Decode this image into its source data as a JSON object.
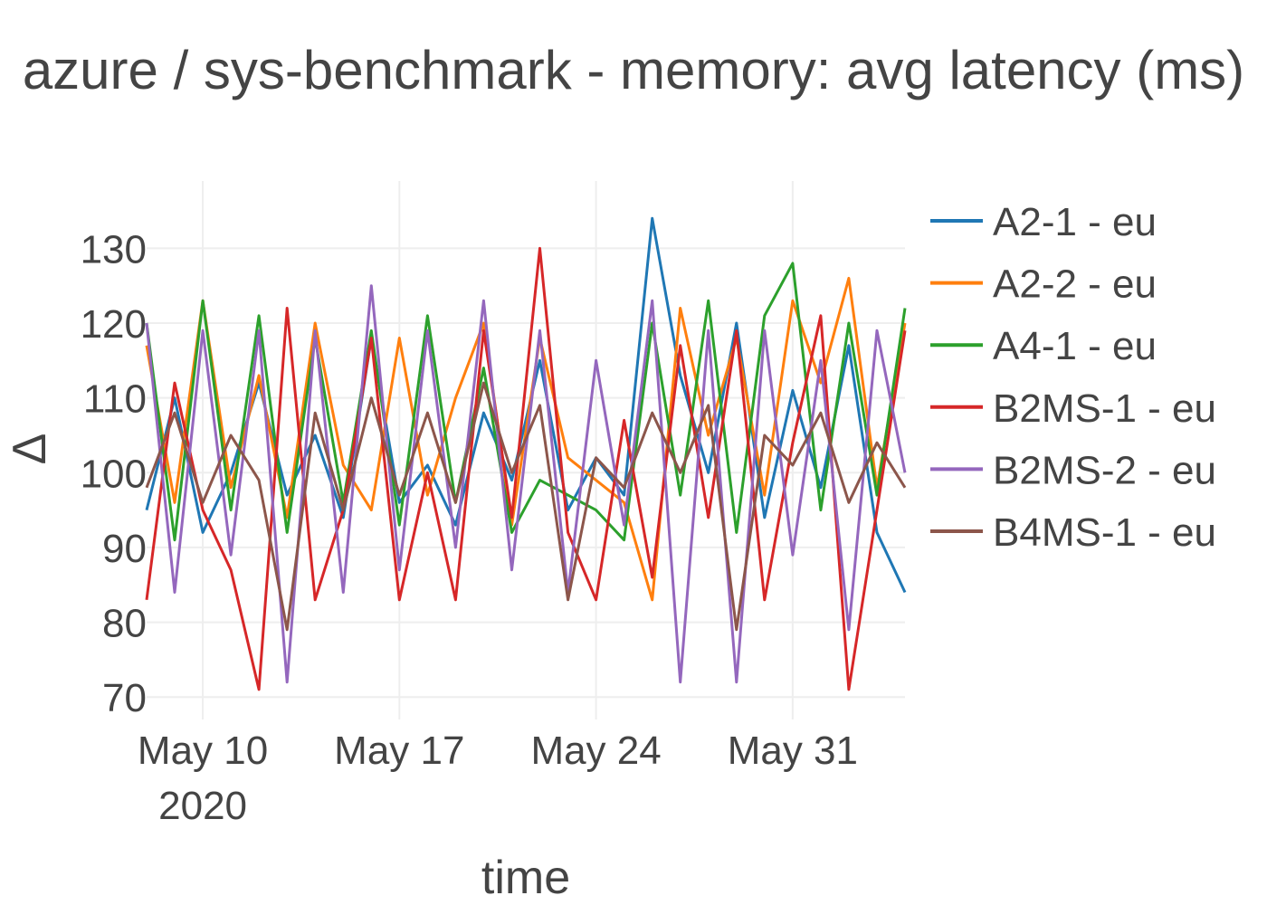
{
  "chart_data": {
    "type": "line",
    "title": "azure / sys-benchmark - memory: avg latency (ms)",
    "xlabel": "time",
    "ylabel": "Δ",
    "x_range": [
      "2020-05-08",
      "2020-06-04"
    ],
    "ylim": [
      67,
      139
    ],
    "y_ticks": [
      70,
      80,
      90,
      100,
      110,
      120,
      130
    ],
    "y_tick_labels": [
      "70",
      "80",
      "90",
      "100",
      "110",
      "120",
      "130"
    ],
    "x_ticks": [
      {
        "date": "2020-05-10",
        "label": "May 10",
        "sublabel": "2020"
      },
      {
        "date": "2020-05-17",
        "label": "May 17",
        "sublabel": ""
      },
      {
        "date": "2020-05-24",
        "label": "May 24",
        "sublabel": ""
      },
      {
        "date": "2020-05-31",
        "label": "May 31",
        "sublabel": ""
      }
    ],
    "grid": true,
    "legend_position": "top-right",
    "series": [
      {
        "name": "A2-1 - eu",
        "color": "#1f77b4",
        "x": [
          "2020-05-08",
          "2020-05-09",
          "2020-05-10",
          "2020-05-11",
          "2020-05-12",
          "2020-05-13",
          "2020-05-14",
          "2020-05-15",
          "2020-05-16",
          "2020-05-17",
          "2020-05-18",
          "2020-05-19",
          "2020-05-20",
          "2020-05-21",
          "2020-05-22",
          "2020-05-23",
          "2020-05-24",
          "2020-05-25",
          "2020-05-26",
          "2020-05-27",
          "2020-05-28",
          "2020-05-29",
          "2020-05-30",
          "2020-05-31",
          "2020-06-01",
          "2020-06-02",
          "2020-06-03",
          "2020-06-04"
        ],
        "values": [
          95,
          110,
          92,
          100,
          112,
          97,
          105,
          94,
          118,
          96,
          101,
          93,
          108,
          99,
          115,
          95,
          102,
          97,
          134,
          113,
          100,
          120,
          94,
          111,
          98,
          117,
          92,
          84
        ]
      },
      {
        "name": "A2-2 - eu",
        "color": "#ff7f0e",
        "x": [
          "2020-05-08",
          "2020-05-09",
          "2020-05-10",
          "2020-05-11",
          "2020-05-12",
          "2020-05-13",
          "2020-05-14",
          "2020-05-15",
          "2020-05-16",
          "2020-05-17",
          "2020-05-18",
          "2020-05-19",
          "2020-05-20",
          "2020-05-21",
          "2020-05-22",
          "2020-05-23",
          "2020-05-24",
          "2020-05-25",
          "2020-05-26",
          "2020-05-27",
          "2020-05-28",
          "2020-05-29",
          "2020-05-30",
          "2020-05-31",
          "2020-06-01",
          "2020-06-02",
          "2020-06-03",
          "2020-06-04"
        ],
        "values": [
          117,
          96,
          123,
          98,
          113,
          94,
          120,
          101,
          95,
          118,
          97,
          110,
          120,
          93,
          118,
          102,
          99,
          96,
          83,
          122,
          105,
          118,
          97,
          123,
          112,
          126,
          98,
          120
        ]
      },
      {
        "name": "A4-1 - eu",
        "color": "#2ca02c",
        "x": [
          "2020-05-08",
          "2020-05-09",
          "2020-05-10",
          "2020-05-11",
          "2020-05-12",
          "2020-05-13",
          "2020-05-14",
          "2020-05-15",
          "2020-05-16",
          "2020-05-17",
          "2020-05-18",
          "2020-05-19",
          "2020-05-20",
          "2020-05-21",
          "2020-05-22",
          "2020-05-23",
          "2020-05-24",
          "2020-05-25",
          "2020-05-26",
          "2020-05-27",
          "2020-05-28",
          "2020-05-29",
          "2020-05-30",
          "2020-05-31",
          "2020-06-01",
          "2020-06-02",
          "2020-06-03",
          "2020-06-04"
        ],
        "values": [
          120,
          91,
          123,
          95,
          121,
          92,
          118,
          96,
          119,
          93,
          121,
          96,
          114,
          92,
          99,
          97,
          95,
          91,
          120,
          97,
          123,
          92,
          121,
          128,
          95,
          120,
          97,
          122
        ]
      },
      {
        "name": "B2MS-1 - eu",
        "color": "#d62728",
        "x": [
          "2020-05-08",
          "2020-05-09",
          "2020-05-10",
          "2020-05-11",
          "2020-05-12",
          "2020-05-13",
          "2020-05-14",
          "2020-05-15",
          "2020-05-16",
          "2020-05-17",
          "2020-05-18",
          "2020-05-19",
          "2020-05-20",
          "2020-05-21",
          "2020-05-22",
          "2020-05-23",
          "2020-05-24",
          "2020-05-25",
          "2020-05-26",
          "2020-05-27",
          "2020-05-28",
          "2020-05-29",
          "2020-05-30",
          "2020-05-31",
          "2020-06-01",
          "2020-06-02",
          "2020-06-03",
          "2020-06-04"
        ],
        "values": [
          83,
          112,
          95,
          87,
          71,
          122,
          83,
          95,
          118,
          83,
          100,
          83,
          119,
          94,
          130,
          92,
          83,
          107,
          86,
          117,
          94,
          119,
          83,
          104,
          121,
          71,
          95,
          119
        ]
      },
      {
        "name": "B2MS-2 - eu",
        "color": "#9467bd",
        "x": [
          "2020-05-08",
          "2020-05-09",
          "2020-05-10",
          "2020-05-11",
          "2020-05-12",
          "2020-05-13",
          "2020-05-14",
          "2020-05-15",
          "2020-05-16",
          "2020-05-17",
          "2020-05-18",
          "2020-05-19",
          "2020-05-20",
          "2020-05-21",
          "2020-05-22",
          "2020-05-23",
          "2020-05-24",
          "2020-05-25",
          "2020-05-26",
          "2020-05-27",
          "2020-05-28",
          "2020-05-29",
          "2020-05-30",
          "2020-05-31",
          "2020-06-01",
          "2020-06-02",
          "2020-06-03",
          "2020-06-04"
        ],
        "values": [
          120,
          84,
          119,
          89,
          119,
          72,
          119,
          84,
          125,
          87,
          119,
          90,
          123,
          87,
          119,
          84,
          115,
          93,
          123,
          72,
          119,
          72,
          119,
          89,
          115,
          79,
          119,
          100
        ]
      },
      {
        "name": "B4MS-1 - eu",
        "color": "#8c564b",
        "x": [
          "2020-05-08",
          "2020-05-09",
          "2020-05-10",
          "2020-05-11",
          "2020-05-12",
          "2020-05-13",
          "2020-05-14",
          "2020-05-15",
          "2020-05-16",
          "2020-05-17",
          "2020-05-18",
          "2020-05-19",
          "2020-05-20",
          "2020-05-21",
          "2020-05-22",
          "2020-05-23",
          "2020-05-24",
          "2020-05-25",
          "2020-05-26",
          "2020-05-27",
          "2020-05-28",
          "2020-05-29",
          "2020-05-30",
          "2020-05-31",
          "2020-06-01",
          "2020-06-02",
          "2020-06-03",
          "2020-06-04"
        ],
        "values": [
          98,
          108,
          96,
          105,
          99,
          79,
          108,
          95,
          110,
          97,
          108,
          96,
          112,
          100,
          109,
          83,
          102,
          98,
          108,
          100,
          109,
          79,
          105,
          101,
          108,
          96,
          104,
          98
        ]
      }
    ]
  }
}
